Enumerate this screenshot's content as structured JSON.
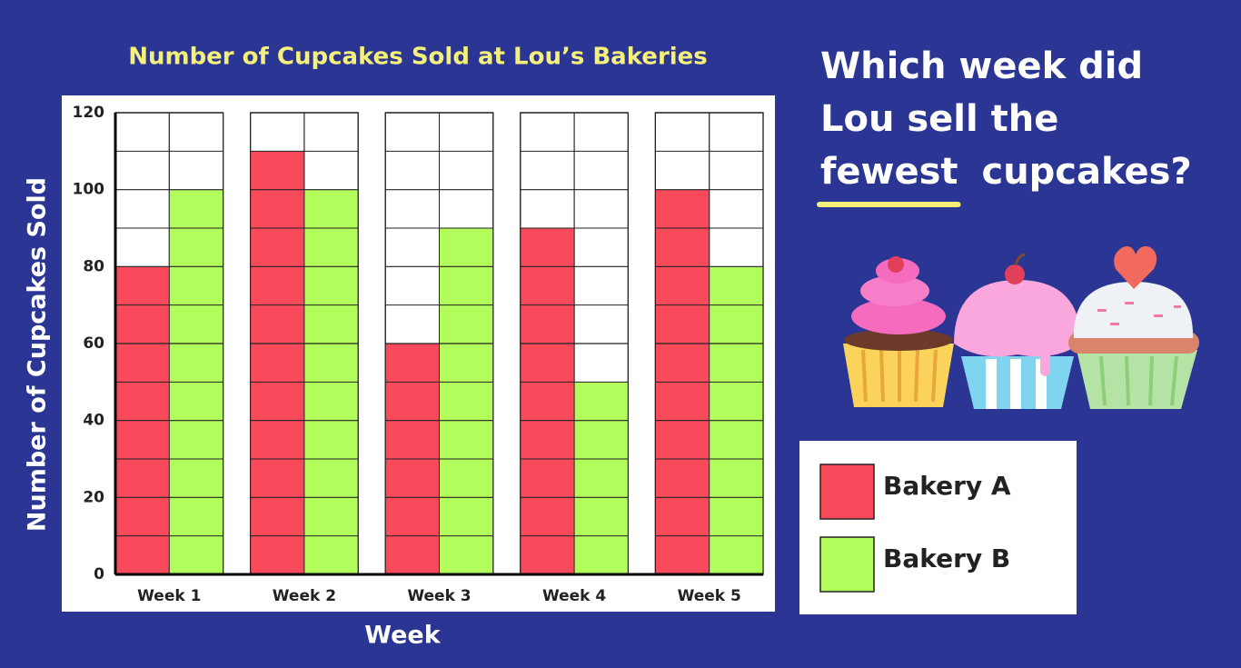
{
  "chart_data": {
    "type": "bar",
    "title": "Number of Cupcakes Sold at Lou’s Bakeries",
    "x_label": "Week",
    "y_label": "Number of Cupcakes Sold",
    "categories": [
      "Week 1",
      "Week 2",
      "Week 3",
      "Week 4",
      "Week 5"
    ],
    "series": [
      {
        "name": "Bakery A",
        "color": "#f94a5c",
        "values": [
          80,
          110,
          60,
          90,
          100
        ]
      },
      {
        "name": "Bakery B",
        "color": "#b2fc5c",
        "values": [
          100,
          100,
          90,
          50,
          80
        ]
      }
    ],
    "ylim": [
      0,
      120
    ],
    "yticks": [
      0,
      20,
      40,
      60,
      80,
      100,
      120
    ],
    "minor_yticks": [
      10,
      30,
      50,
      70,
      90,
      110
    ],
    "grid": true
  },
  "question": {
    "lines": [
      "Which week did",
      "Lou sell the"
    ],
    "emphasis": "fewest",
    "end": "cupcakes?"
  }
}
